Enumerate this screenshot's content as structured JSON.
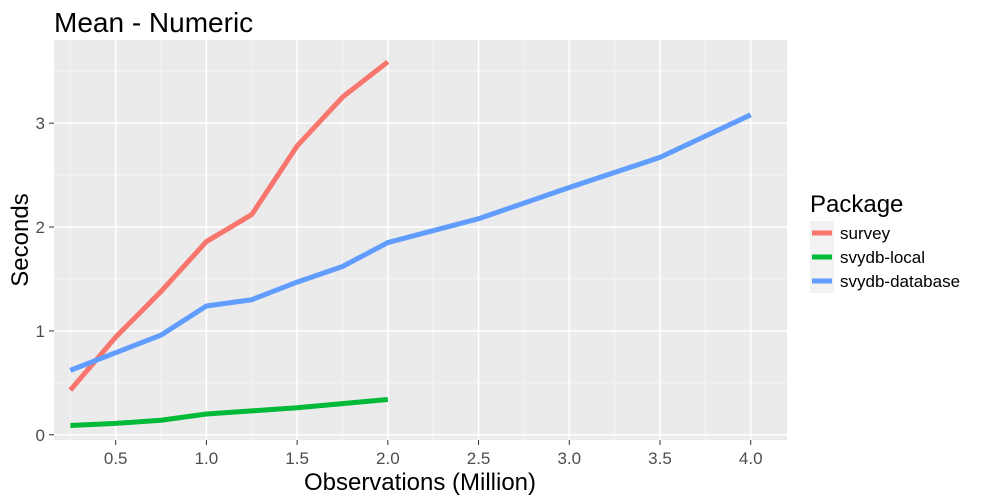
{
  "chart_data": {
    "type": "line",
    "title": "Mean - Numeric",
    "xlabel": "Observations (Million)",
    "ylabel": "Seconds",
    "xlim": [
      0.16,
      4.2
    ],
    "ylim": [
      -0.05,
      3.8
    ],
    "x_ticks": [
      0.5,
      1.0,
      1.5,
      2.0,
      2.5,
      3.0,
      3.5,
      4.0
    ],
    "x_tick_labels": [
      "0.5",
      "1.0",
      "1.5",
      "2.0",
      "2.5",
      "3.0",
      "3.5",
      "4.0"
    ],
    "y_ticks": [
      0,
      1,
      2,
      3
    ],
    "y_tick_labels": [
      "0",
      "1",
      "2",
      "3"
    ],
    "grid": true,
    "legend": {
      "title": "Package",
      "placement": "right"
    },
    "series": [
      {
        "name": "survey",
        "color": "#F8766D",
        "x": [
          0.25,
          0.5,
          0.75,
          1.0,
          1.25,
          1.5,
          1.75,
          2.0
        ],
        "y": [
          0.43,
          0.94,
          1.38,
          1.86,
          2.12,
          2.78,
          3.25,
          3.59
        ]
      },
      {
        "name": "svydb-local",
        "color": "#00BA38",
        "x": [
          0.25,
          0.5,
          0.75,
          1.0,
          1.25,
          1.5,
          1.75,
          2.0
        ],
        "y": [
          0.09,
          0.11,
          0.14,
          0.2,
          0.23,
          0.26,
          0.3,
          0.34
        ]
      },
      {
        "name": "svydb-database",
        "color": "#619CFF",
        "x": [
          0.25,
          0.5,
          0.75,
          1.0,
          1.25,
          1.5,
          1.75,
          2.0,
          2.5,
          3.0,
          3.5,
          4.0
        ],
        "y": [
          0.62,
          0.79,
          0.96,
          1.24,
          1.3,
          1.47,
          1.62,
          1.85,
          2.08,
          2.38,
          2.67,
          3.08
        ]
      }
    ]
  }
}
